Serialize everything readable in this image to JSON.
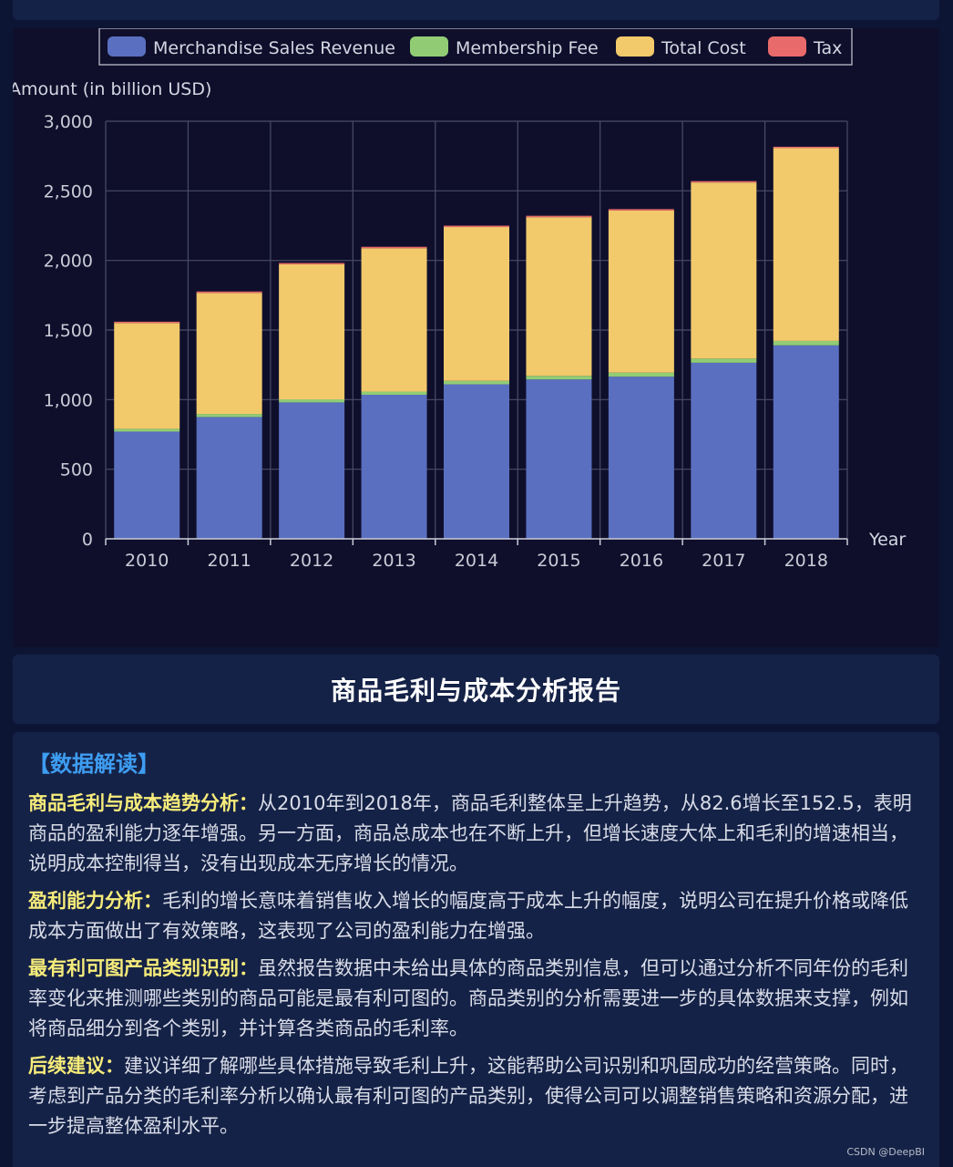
{
  "chart_data": {
    "type": "bar",
    "stacked": true,
    "categories": [
      "2010",
      "2011",
      "2012",
      "2013",
      "2014",
      "2015",
      "2016",
      "2017",
      "2018"
    ],
    "series": [
      {
        "name": "Merchandise Sales Revenue",
        "color": "#5a6fc0",
        "values": [
          770,
          875,
          980,
          1035,
          1110,
          1145,
          1165,
          1265,
          1390
        ]
      },
      {
        "name": "Membership Fee",
        "color": "#91cc75",
        "values": [
          20,
          22,
          22,
          23,
          25,
          26,
          29,
          30,
          32
        ]
      },
      {
        "name": "Total Cost",
        "color": "#f2c96b",
        "values": [
          760,
          870,
          970,
          1030,
          1105,
          1140,
          1165,
          1265,
          1385
        ]
      },
      {
        "name": "Tax",
        "color": "#e86a6a",
        "values": [
          10,
          10,
          10,
          10,
          10,
          10,
          10,
          10,
          10
        ]
      }
    ],
    "ylabel": "Amount (in billion USD)",
    "xlabel": "Year",
    "ylim": [
      0,
      3000
    ],
    "yticks": [
      0,
      500,
      1000,
      1500,
      2000,
      2500,
      3000
    ],
    "ytick_labels": [
      "0",
      "500",
      "1,000",
      "1,500",
      "2,000",
      "2,500",
      "3,000"
    ],
    "legend_position": "top-center",
    "grid": true
  },
  "report": {
    "title": "商品毛利与成本分析报告",
    "section_heading": "【数据解读】",
    "paragraphs": [
      {
        "head": "商品毛利与成本趋势分析：",
        "body": "从2010年到2018年，商品毛利整体呈上升趋势，从82.6增长至152.5，表明商品的盈利能力逐年增强。另一方面，商品总成本也在不断上升，但增长速度大体上和毛利的增速相当，说明成本控制得当，没有出现成本无序增长的情况。"
      },
      {
        "head": "盈利能力分析：",
        "body": "毛利的增长意味着销售收入增长的幅度高于成本上升的幅度，说明公司在提升价格或降低成本方面做出了有效策略，这表现了公司的盈利能力在增强。"
      },
      {
        "head": "最有利可图产品类别识别：",
        "body": "虽然报告数据中未给出具体的商品类别信息，但可以通过分析不同年份的毛利率变化来推测哪些类别的商品可能是最有利可图的。商品类别的分析需要进一步的具体数据来支撑，例如将商品细分到各个类别，并计算各类商品的毛利率。"
      },
      {
        "head": "后续建议：",
        "body": "建议详细了解哪些具体措施导致毛利上升，这能帮助公司识别和巩固成功的经营策略。同时，考虑到产品分类的毛利率分析以确认最有利可图的产品类别，使得公司可以调整销售策略和资源分配，进一步提高整体盈利水平。"
      }
    ]
  },
  "watermark": "CSDN @DeepBI"
}
